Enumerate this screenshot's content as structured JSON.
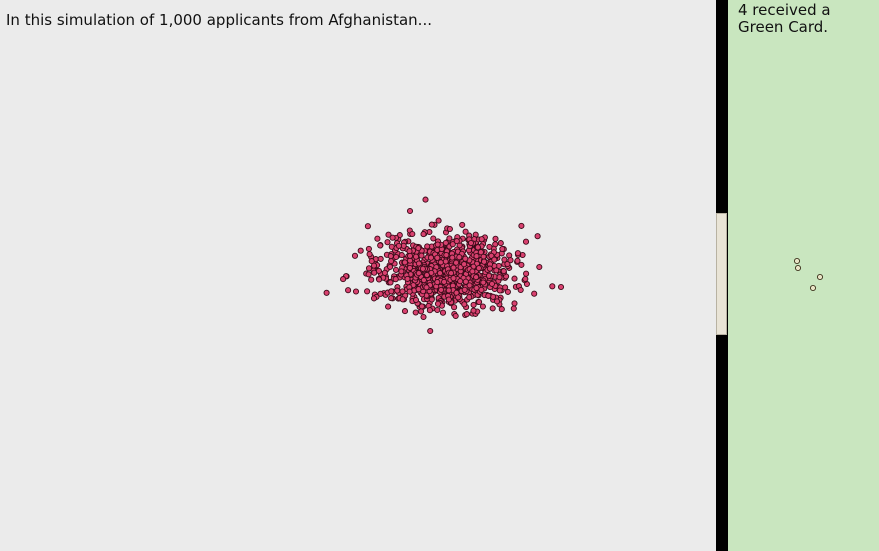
{
  "intro": {
    "text": "In this simulation of 1,000 applicants from Afghanistan..."
  },
  "result": {
    "text": "4 received a Green Card."
  },
  "simulation": {
    "total_applicants": 1000,
    "green_card_count": 4
  },
  "colors": {
    "main_background": "#ebebeb",
    "divider": "#000000",
    "gate": "#e9e4d6",
    "result_background": "#c9e6bf",
    "applicant_fill": "#d9416f",
    "applicant_stroke": "#3a0a18",
    "winner_fill": "#e9e4c6",
    "winner_stroke": "#3a2f1a"
  }
}
